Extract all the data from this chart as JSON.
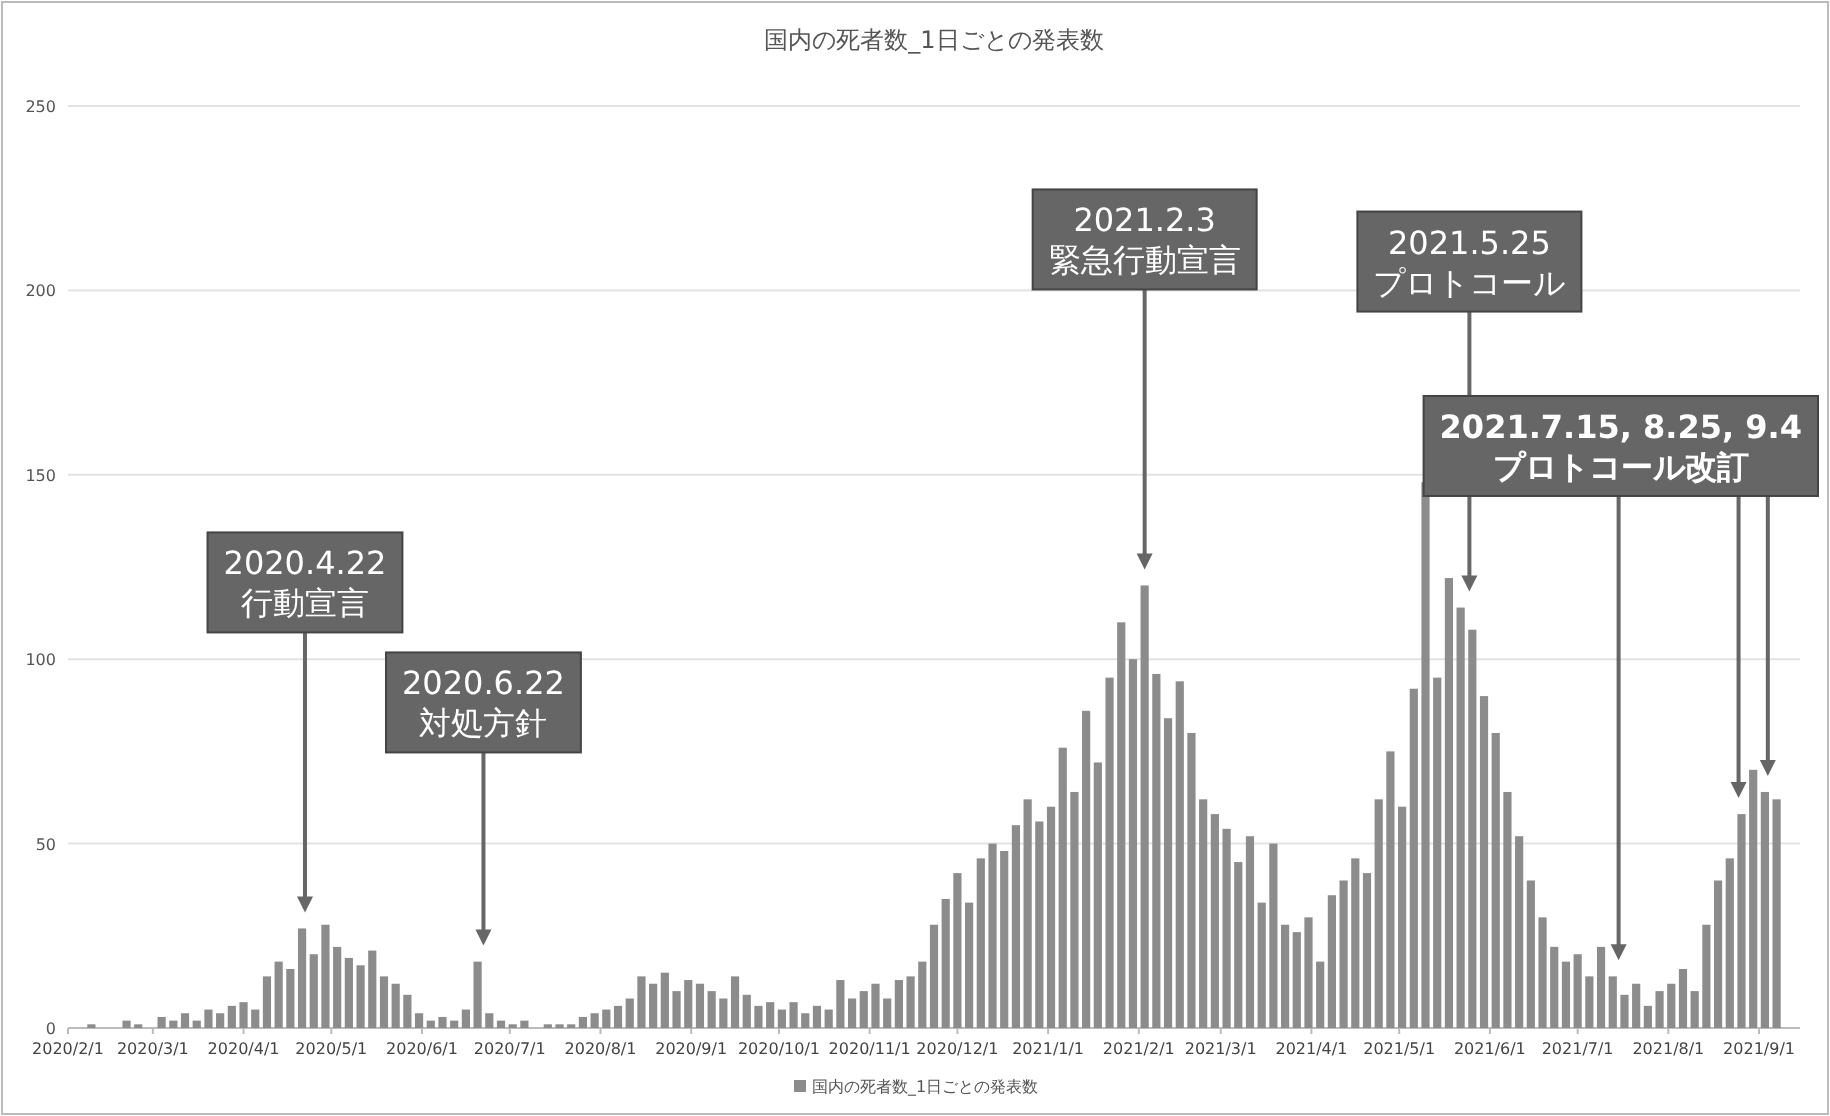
{
  "chart_data": {
    "type": "bar",
    "title": "国内の死者数_1日ごとの発表数",
    "x": [
      "2020-02-01",
      "2020-02-05",
      "2020-02-09",
      "2020-02-13",
      "2020-02-17",
      "2020-02-21",
      "2020-02-25",
      "2020-02-29",
      "2020-03-04",
      "2020-03-08",
      "2020-03-12",
      "2020-03-16",
      "2020-03-20",
      "2020-03-24",
      "2020-03-28",
      "2020-04-01",
      "2020-04-05",
      "2020-04-09",
      "2020-04-13",
      "2020-04-17",
      "2020-04-21",
      "2020-04-25",
      "2020-04-29",
      "2020-05-03",
      "2020-05-07",
      "2020-05-11",
      "2020-05-15",
      "2020-05-19",
      "2020-05-23",
      "2020-05-27",
      "2020-05-31",
      "2020-06-04",
      "2020-06-08",
      "2020-06-12",
      "2020-06-16",
      "2020-06-20",
      "2020-06-24",
      "2020-06-28",
      "2020-07-02",
      "2020-07-06",
      "2020-07-10",
      "2020-07-14",
      "2020-07-18",
      "2020-07-22",
      "2020-07-26",
      "2020-07-30",
      "2020-08-03",
      "2020-08-07",
      "2020-08-11",
      "2020-08-15",
      "2020-08-19",
      "2020-08-23",
      "2020-08-27",
      "2020-08-31",
      "2020-09-04",
      "2020-09-08",
      "2020-09-12",
      "2020-09-16",
      "2020-09-20",
      "2020-09-24",
      "2020-09-28",
      "2020-10-02",
      "2020-10-06",
      "2020-10-10",
      "2020-10-14",
      "2020-10-18",
      "2020-10-22",
      "2020-10-26",
      "2020-10-30",
      "2020-11-03",
      "2020-11-07",
      "2020-11-11",
      "2020-11-15",
      "2020-11-19",
      "2020-11-23",
      "2020-11-27",
      "2020-12-01",
      "2020-12-05",
      "2020-12-09",
      "2020-12-13",
      "2020-12-17",
      "2020-12-21",
      "2020-12-25",
      "2020-12-29",
      "2021-01-02",
      "2021-01-06",
      "2021-01-10",
      "2021-01-14",
      "2021-01-18",
      "2021-01-22",
      "2021-01-26",
      "2021-01-30",
      "2021-02-03",
      "2021-02-07",
      "2021-02-11",
      "2021-02-15",
      "2021-02-19",
      "2021-02-23",
      "2021-02-27",
      "2021-03-03",
      "2021-03-07",
      "2021-03-11",
      "2021-03-15",
      "2021-03-19",
      "2021-03-23",
      "2021-03-27",
      "2021-03-31",
      "2021-04-04",
      "2021-04-08",
      "2021-04-12",
      "2021-04-16",
      "2021-04-20",
      "2021-04-24",
      "2021-04-28",
      "2021-05-02",
      "2021-05-06",
      "2021-05-10",
      "2021-05-14",
      "2021-05-18",
      "2021-05-22",
      "2021-05-26",
      "2021-05-30",
      "2021-06-03",
      "2021-06-07",
      "2021-06-11",
      "2021-06-15",
      "2021-06-19",
      "2021-06-23",
      "2021-06-27",
      "2021-07-01",
      "2021-07-05",
      "2021-07-09",
      "2021-07-13",
      "2021-07-17",
      "2021-07-21",
      "2021-07-25",
      "2021-07-29",
      "2021-08-02",
      "2021-08-06",
      "2021-08-10",
      "2021-08-14",
      "2021-08-18",
      "2021-08-22",
      "2021-08-26",
      "2021-08-30",
      "2021-09-03",
      "2021-09-07"
    ],
    "series": [
      {
        "name": "国内の死者数_1日ごとの発表数",
        "color": "#8c8c8c",
        "values": [
          0,
          0,
          1,
          0,
          0,
          2,
          1,
          0,
          3,
          2,
          4,
          2,
          5,
          4,
          6,
          7,
          5,
          14,
          18,
          16,
          27,
          20,
          28,
          22,
          19,
          17,
          21,
          14,
          12,
          9,
          4,
          2,
          3,
          2,
          5,
          18,
          4,
          2,
          1,
          2,
          0,
          1,
          1,
          1,
          3,
          4,
          5,
          6,
          8,
          14,
          12,
          15,
          10,
          13,
          12,
          10,
          8,
          14,
          9,
          6,
          7,
          5,
          7,
          4,
          6,
          5,
          13,
          8,
          10,
          12,
          8,
          13,
          14,
          18,
          28,
          35,
          42,
          34,
          46,
          50,
          48,
          55,
          62,
          56,
          60,
          76,
          64,
          86,
          72,
          95,
          110,
          100,
          120,
          96,
          84,
          94,
          80,
          62,
          58,
          54,
          45,
          52,
          34,
          50,
          28,
          26,
          30,
          18,
          36,
          40,
          46,
          42,
          62,
          75,
          60,
          92,
          148,
          95,
          122,
          114,
          108,
          90,
          80,
          64,
          52,
          40,
          30,
          22,
          18,
          20,
          14,
          22,
          14,
          9,
          12,
          6,
          10,
          12,
          16,
          10,
          28,
          40,
          46,
          58,
          70,
          64,
          62
        ]
      }
    ],
    "xlim": [
      "2020-02-01",
      "2021-09-15"
    ],
    "xticks": [
      {
        "value": "2020-02-01",
        "label": "2020/2/1"
      },
      {
        "value": "2020-03-01",
        "label": "2020/3/1"
      },
      {
        "value": "2020-04-01",
        "label": "2020/4/1"
      },
      {
        "value": "2020-05-01",
        "label": "2020/5/1"
      },
      {
        "value": "2020-06-01",
        "label": "2020/6/1"
      },
      {
        "value": "2020-07-01",
        "label": "2020/7/1"
      },
      {
        "value": "2020-08-01",
        "label": "2020/8/1"
      },
      {
        "value": "2020-09-01",
        "label": "2020/9/1"
      },
      {
        "value": "2020-10-01",
        "label": "2020/10/1"
      },
      {
        "value": "2020-11-01",
        "label": "2020/11/1"
      },
      {
        "value": "2020-12-01",
        "label": "2020/12/1"
      },
      {
        "value": "2021-01-01",
        "label": "2021/1/1"
      },
      {
        "value": "2021-02-01",
        "label": "2021/2/1"
      },
      {
        "value": "2021-03-01",
        "label": "2021/3/1"
      },
      {
        "value": "2021-04-01",
        "label": "2021/4/1"
      },
      {
        "value": "2021-05-01",
        "label": "2021/5/1"
      },
      {
        "value": "2021-06-01",
        "label": "2021/6/1"
      },
      {
        "value": "2021-07-01",
        "label": "2021/7/1"
      },
      {
        "value": "2021-08-01",
        "label": "2021/8/1"
      },
      {
        "value": "2021-09-01",
        "label": "2021/9/1"
      }
    ],
    "ylim": [
      0,
      250
    ],
    "yticks": [
      0,
      50,
      100,
      150,
      200,
      250
    ],
    "grid": "y",
    "legend": "bottom",
    "ref_lines": [
      {
        "axis": "x",
        "value": "2020-04-22",
        "label": "2020.4.22\n行動宣言"
      },
      {
        "axis": "x",
        "value": "2020-06-22",
        "label": "2020.6.22\n対処方針"
      },
      {
        "axis": "x",
        "value": "2021-02-03",
        "label": "2021.2.3\n緊急行動宣言"
      },
      {
        "axis": "x",
        "value": "2021-05-25",
        "label": "2021.5.25\nプロトコール"
      },
      {
        "axis": "x",
        "value": "2021-07-15",
        "label": "2021.7.15, 8.25, 9.4\nプロトコール改訂"
      },
      {
        "axis": "x",
        "value": "2021-08-25"
      },
      {
        "axis": "x",
        "value": "2021-09-04"
      }
    ]
  }
}
